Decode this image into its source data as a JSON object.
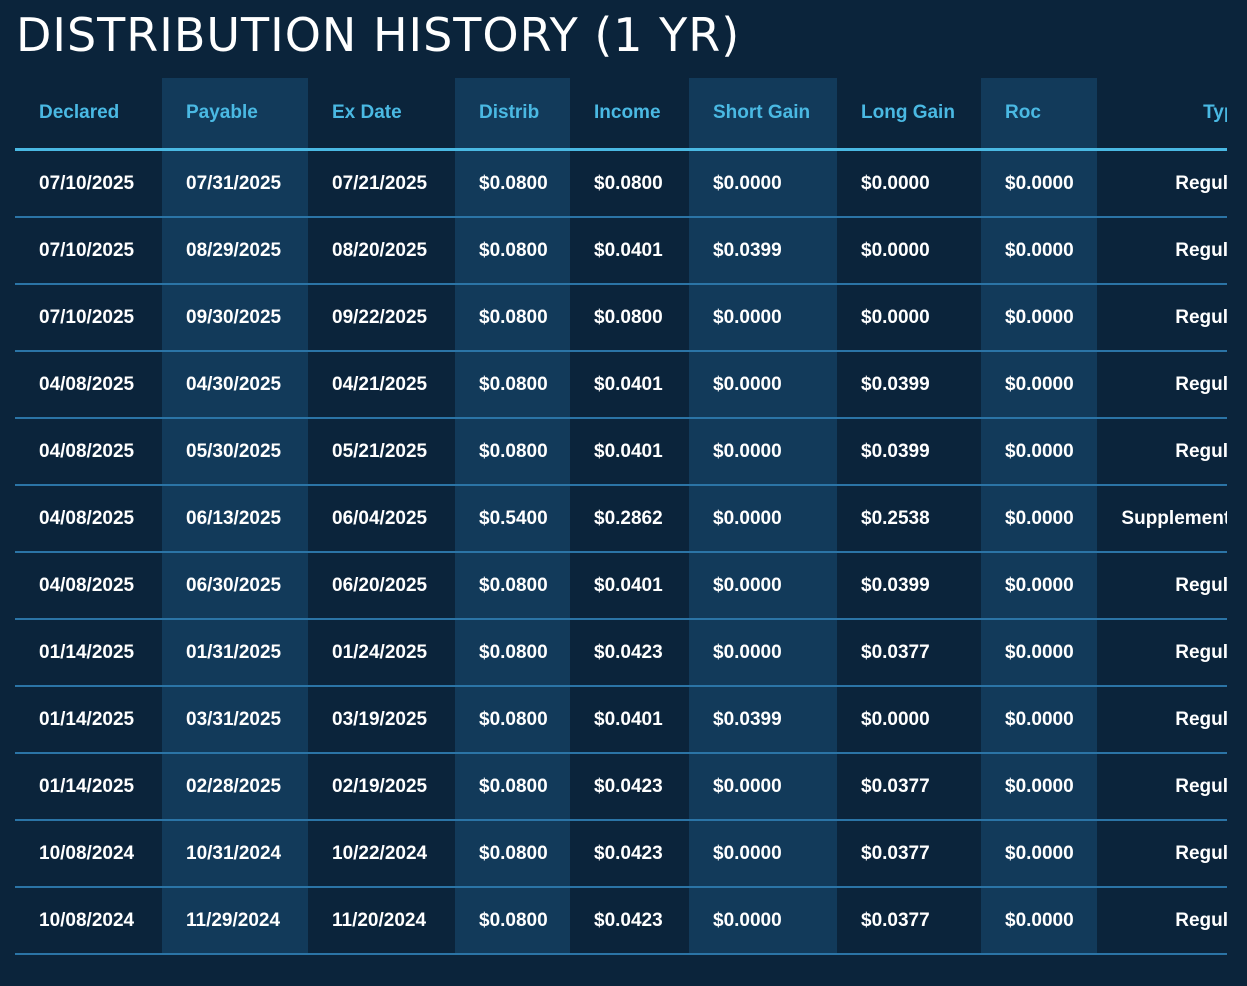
{
  "header": {
    "title": "DISTRIBUTION HISTORY (1 YR)"
  },
  "table": {
    "headers": [
      "Declared",
      "Payable",
      "Ex Date",
      "Distrib",
      "Income",
      "Short Gain",
      "Long Gain",
      "Roc",
      "Type"
    ],
    "rows": [
      [
        "07/10/2025",
        "07/31/2025",
        "07/21/2025",
        "$0.0800",
        "$0.0800",
        "$0.0000",
        "$0.0000",
        "$0.0000",
        "Regular"
      ],
      [
        "07/10/2025",
        "08/29/2025",
        "08/20/2025",
        "$0.0800",
        "$0.0401",
        "$0.0399",
        "$0.0000",
        "$0.0000",
        "Regular"
      ],
      [
        "07/10/2025",
        "09/30/2025",
        "09/22/2025",
        "$0.0800",
        "$0.0800",
        "$0.0000",
        "$0.0000",
        "$0.0000",
        "Regular"
      ],
      [
        "04/08/2025",
        "04/30/2025",
        "04/21/2025",
        "$0.0800",
        "$0.0401",
        "$0.0000",
        "$0.0399",
        "$0.0000",
        "Regular"
      ],
      [
        "04/08/2025",
        "05/30/2025",
        "05/21/2025",
        "$0.0800",
        "$0.0401",
        "$0.0000",
        "$0.0399",
        "$0.0000",
        "Regular"
      ],
      [
        "04/08/2025",
        "06/13/2025",
        "06/04/2025",
        "$0.5400",
        "$0.2862",
        "$0.0000",
        "$0.2538",
        "$0.0000",
        "Supplemental"
      ],
      [
        "04/08/2025",
        "06/30/2025",
        "06/20/2025",
        "$0.0800",
        "$0.0401",
        "$0.0000",
        "$0.0399",
        "$0.0000",
        "Regular"
      ],
      [
        "01/14/2025",
        "01/31/2025",
        "01/24/2025",
        "$0.0800",
        "$0.0423",
        "$0.0000",
        "$0.0377",
        "$0.0000",
        "Regular"
      ],
      [
        "01/14/2025",
        "03/31/2025",
        "03/19/2025",
        "$0.0800",
        "$0.0401",
        "$0.0399",
        "$0.0000",
        "$0.0000",
        "Regular"
      ],
      [
        "01/14/2025",
        "02/28/2025",
        "02/19/2025",
        "$0.0800",
        "$0.0423",
        "$0.0000",
        "$0.0377",
        "$0.0000",
        "Regular"
      ],
      [
        "10/08/2024",
        "10/31/2024",
        "10/22/2024",
        "$0.0800",
        "$0.0423",
        "$0.0000",
        "$0.0377",
        "$0.0000",
        "Regular"
      ],
      [
        "10/08/2024",
        "11/29/2024",
        "11/20/2024",
        "$0.0800",
        "$0.0423",
        "$0.0000",
        "$0.0377",
        "$0.0000",
        "Regular"
      ]
    ]
  }
}
